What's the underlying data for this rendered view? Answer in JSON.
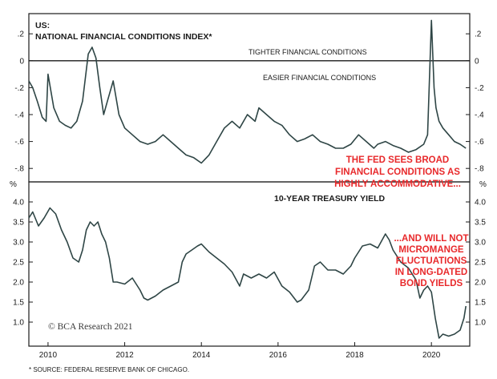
{
  "chart_data": [
    {
      "type": "line",
      "title": "US:",
      "subtitle": "NATIONAL FINANCIAL CONDITIONS INDEX*",
      "ylim": [
        -0.9,
        0.35
      ],
      "yticks": [
        0.2,
        0,
        -0.2,
        -0.4,
        -0.6,
        -0.8
      ],
      "ytick_labels": [
        ".2",
        "0",
        "-.2",
        "-.4",
        "-.6",
        "-.8"
      ],
      "zero_line": true,
      "labels_above_zero": "TIGHTER FINANCIAL CONDITIONS",
      "labels_below_zero": "EASIER FINANCIAL CONDITIONS",
      "annotation": [
        "THE FED SEES BROAD",
        "FINANCIAL CONDITIONS AS",
        "HIGHLY ACCOMMODATIVE..."
      ],
      "series": [
        {
          "x": [
            2009.5,
            2009.6,
            2009.72,
            2009.85,
            2009.95,
            2010.0,
            2010.15,
            2010.3,
            2010.45,
            2010.6,
            2010.75,
            2010.9,
            2011.05,
            2011.15,
            2011.25,
            2011.35,
            2011.45,
            2011.55,
            2011.7,
            2011.85,
            2012.0,
            2012.2,
            2012.4,
            2012.6,
            2012.8,
            2013.0,
            2013.2,
            2013.4,
            2013.6,
            2013.8,
            2014.0,
            2014.2,
            2014.4,
            2014.6,
            2014.8,
            2015.0,
            2015.2,
            2015.4,
            2015.5,
            2015.7,
            2015.9,
            2016.1,
            2016.3,
            2016.5,
            2016.7,
            2016.9,
            2017.1,
            2017.3,
            2017.5,
            2017.7,
            2017.9,
            2018.1,
            2018.3,
            2018.5,
            2018.6,
            2018.8,
            2019.0,
            2019.2,
            2019.4,
            2019.6,
            2019.8,
            2019.9,
            2020.0,
            2020.07,
            2020.12,
            2020.2,
            2020.3,
            2020.45,
            2020.6,
            2020.75,
            2020.9
          ],
          "values": [
            -0.15,
            -0.2,
            -0.3,
            -0.42,
            -0.45,
            -0.1,
            -0.35,
            -0.45,
            -0.48,
            -0.5,
            -0.45,
            -0.3,
            0.05,
            0.1,
            0.02,
            -0.2,
            -0.4,
            -0.3,
            -0.15,
            -0.4,
            -0.5,
            -0.55,
            -0.6,
            -0.62,
            -0.6,
            -0.55,
            -0.6,
            -0.65,
            -0.7,
            -0.72,
            -0.76,
            -0.7,
            -0.6,
            -0.5,
            -0.45,
            -0.5,
            -0.4,
            -0.45,
            -0.35,
            -0.4,
            -0.45,
            -0.48,
            -0.55,
            -0.6,
            -0.58,
            -0.55,
            -0.6,
            -0.62,
            -0.65,
            -0.65,
            -0.62,
            -0.55,
            -0.6,
            -0.65,
            -0.62,
            -0.6,
            -0.63,
            -0.65,
            -0.68,
            -0.66,
            -0.62,
            -0.55,
            0.3,
            -0.2,
            -0.35,
            -0.45,
            -0.5,
            -0.55,
            -0.6,
            -0.62,
            -0.65
          ]
        }
      ]
    },
    {
      "type": "line",
      "title": "10-YEAR TREASURY YIELD",
      "unit_label": "%",
      "ylim": [
        0.4,
        4.5
      ],
      "yticks": [
        4.0,
        3.5,
        3.0,
        2.5,
        2.0,
        1.5,
        1.0
      ],
      "ytick_labels": [
        "4.0",
        "3.5",
        "3.0",
        "2.5",
        "2.0",
        "1.5",
        "1.0"
      ],
      "annotation": [
        "...AND WILL NOT",
        "MICROMANGE",
        "FLUCTUATIONS",
        "IN LONG-DATED",
        "BOND YIELDS"
      ],
      "series": [
        {
          "x": [
            2009.5,
            2009.6,
            2009.75,
            2009.9,
            2010.05,
            2010.2,
            2010.35,
            2010.5,
            2010.65,
            2010.8,
            2010.9,
            2011.0,
            2011.1,
            2011.2,
            2011.3,
            2011.4,
            2011.5,
            2011.6,
            2011.7,
            2011.8,
            2012.0,
            2012.2,
            2012.4,
            2012.5,
            2012.6,
            2012.8,
            2013.0,
            2013.2,
            2013.4,
            2013.5,
            2013.6,
            2013.75,
            2013.9,
            2014.0,
            2014.2,
            2014.4,
            2014.6,
            2014.8,
            2015.0,
            2015.1,
            2015.3,
            2015.5,
            2015.7,
            2015.9,
            2016.1,
            2016.3,
            2016.5,
            2016.6,
            2016.8,
            2016.95,
            2017.1,
            2017.3,
            2017.5,
            2017.7,
            2017.9,
            2018.0,
            2018.2,
            2018.4,
            2018.6,
            2018.8,
            2018.9,
            2019.0,
            2019.2,
            2019.4,
            2019.6,
            2019.7,
            2019.8,
            2019.9,
            2020.0,
            2020.1,
            2020.2,
            2020.3,
            2020.45,
            2020.6,
            2020.75,
            2020.85,
            2020.9
          ],
          "values": [
            3.6,
            3.75,
            3.4,
            3.6,
            3.85,
            3.7,
            3.3,
            3.0,
            2.6,
            2.5,
            2.8,
            3.3,
            3.5,
            3.4,
            3.5,
            3.2,
            3.0,
            2.6,
            2.0,
            2.0,
            1.95,
            2.1,
            1.8,
            1.6,
            1.55,
            1.65,
            1.8,
            1.9,
            2.0,
            2.5,
            2.7,
            2.8,
            2.9,
            2.95,
            2.75,
            2.6,
            2.45,
            2.25,
            1.9,
            2.2,
            2.1,
            2.2,
            2.1,
            2.25,
            1.9,
            1.75,
            1.5,
            1.55,
            1.8,
            2.4,
            2.5,
            2.3,
            2.3,
            2.2,
            2.4,
            2.6,
            2.9,
            2.95,
            2.85,
            3.2,
            3.05,
            2.8,
            2.5,
            2.35,
            2.05,
            1.6,
            1.8,
            1.9,
            1.75,
            1.1,
            0.6,
            0.7,
            0.65,
            0.7,
            0.8,
            1.1,
            1.4
          ]
        }
      ]
    }
  ],
  "x_axis": {
    "xlim": [
      2009.5,
      2021.0
    ],
    "ticks": [
      2010,
      2012,
      2014,
      2016,
      2018,
      2020
    ],
    "tick_labels": [
      "2010",
      "2012",
      "2014",
      "2016",
      "2018",
      "2020"
    ]
  },
  "colors": {
    "line": "#2e4545",
    "annotation": "#e8292b",
    "axis": "#1a1a1a"
  },
  "credit": "© BCA Research 2021",
  "footnote": "* SOURCE: FEDERAL RESERVE BANK OF CHICAGO."
}
